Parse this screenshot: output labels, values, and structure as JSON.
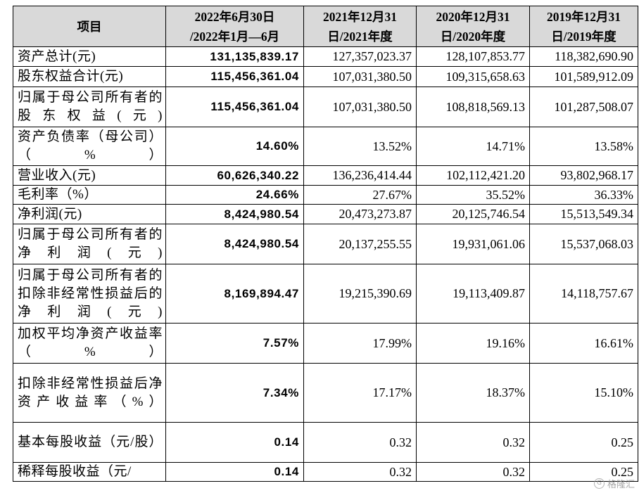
{
  "header": {
    "item": "项目",
    "p1_line1": "2022年6月30日",
    "p1_line2": "/2022年1月—6月",
    "p2_line1": "2021年12月31",
    "p2_line2": "日/2021年度",
    "p3_line1": "2020年12月31",
    "p3_line2": "日/2020年度",
    "p4_line1": "2019年12月31",
    "p4_line2": "日/2019年度"
  },
  "rows": [
    {
      "label": "资产总计(元)",
      "v1": "131,135,839.17",
      "v2": "127,357,023.37",
      "v3": "128,107,853.77",
      "v4": "118,382,690.90"
    },
    {
      "label": "股东权益合计(元)",
      "v1": "115,456,361.04",
      "v2": "107,031,380.50",
      "v3": "109,315,658.63",
      "v4": "101,589,912.09"
    },
    {
      "label": "归属于母公司所有者的股东权益(元)",
      "v1": "115,456,361.04",
      "v2": "107,031,380.50",
      "v3": "108,818,569.13",
      "v4": "101,287,508.07"
    },
    {
      "label": "资产负债率（母公司）（%）",
      "v1": "14.60%",
      "v2": "13.52%",
      "v3": "14.71%",
      "v4": "13.58%"
    },
    {
      "label": "营业收入(元)",
      "v1": "60,626,340.22",
      "v2": "136,236,414.44",
      "v3": "102,112,421.20",
      "v4": "93,802,968.17"
    },
    {
      "label": "毛利率（%）",
      "v1": "24.66%",
      "v2": "27.67%",
      "v3": "35.52%",
      "v4": "36.33%"
    },
    {
      "label": "净利润(元)",
      "v1": "8,424,980.54",
      "v2": "20,473,273.87",
      "v3": "20,125,746.54",
      "v4": "15,513,549.34"
    },
    {
      "label": "归属于母公司所有者的净利润(元)",
      "v1": "8,424,980.54",
      "v2": "20,137,255.55",
      "v3": "19,931,061.06",
      "v4": "15,537,068.03"
    },
    {
      "label": "归属于母公司所有者的扣除非经常性损益后的净利润(元)",
      "v1": "8,169,894.47",
      "v2": "19,215,390.69",
      "v3": "19,113,409.87",
      "v4": "14,118,757.67"
    },
    {
      "label": "加权平均净资产收益率（%）",
      "v1": "7.57%",
      "v2": "17.99%",
      "v3": "19.16%",
      "v4": "16.61%"
    },
    {
      "label": "扣除非经常性损益后净资产收益率（%）",
      "v1": "7.34%",
      "v2": "17.17%",
      "v3": "18.37%",
      "v4": "15.10%"
    },
    {
      "label": "基本每股收益（元/股）",
      "v1": "0.14",
      "v2": "0.32",
      "v3": "0.32",
      "v4": "0.25"
    },
    {
      "label": "稀释每股收益（元/",
      "v1": "0.14",
      "v2": "0.32",
      "v3": "0.32",
      "v4": "0.25"
    }
  ],
  "watermark": {
    "text": "格隆汇",
    "icon": "watermark-logo-icon"
  }
}
